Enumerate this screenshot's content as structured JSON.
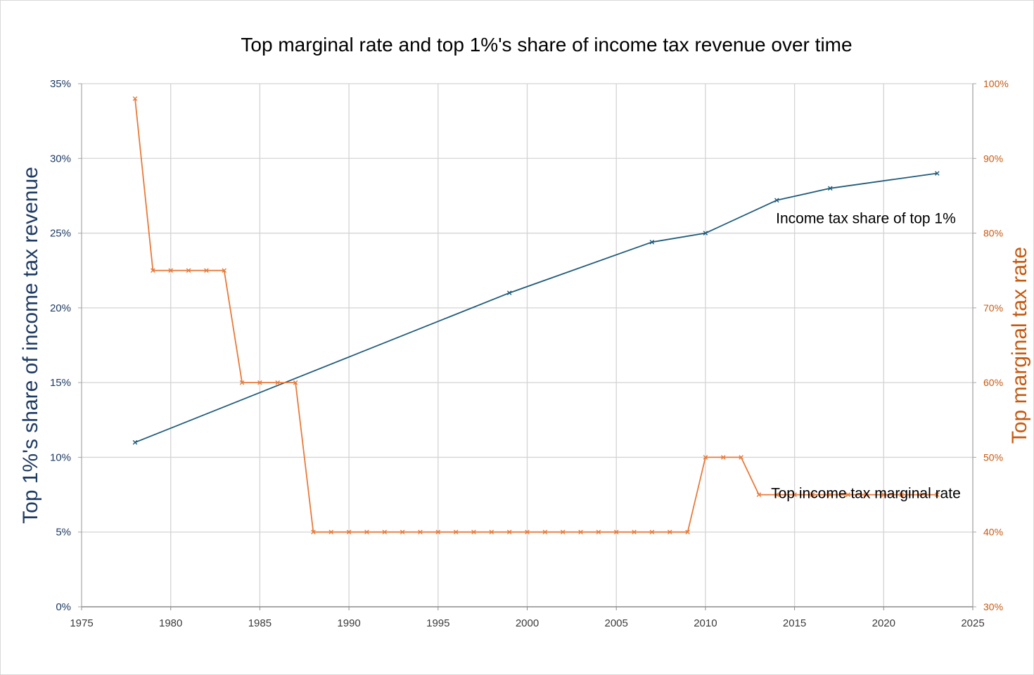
{
  "chart_data": {
    "type": "line",
    "title": "Top marginal rate and top 1%'s share of income tax revenue over time",
    "xlabel": "",
    "ylabel": "Top 1%'s share of income tax revenue",
    "y2label": "Top marginal tax rate",
    "xlim": [
      1975,
      2025
    ],
    "ylim": [
      0,
      35
    ],
    "y2lim": [
      30,
      100
    ],
    "x_ticks": [
      "1975",
      "1980",
      "1985",
      "1990",
      "1995",
      "2000",
      "2005",
      "2010",
      "2015",
      "2020",
      "2025"
    ],
    "y_ticks": [
      "0%",
      "5%",
      "10%",
      "15%",
      "20%",
      "25%",
      "30%",
      "35%"
    ],
    "y2_ticks": [
      "30%",
      "40%",
      "50%",
      "60%",
      "70%",
      "80%",
      "90%",
      "100%"
    ],
    "grid": true,
    "series": [
      {
        "name": "Income tax share of top 1%",
        "axis": "left",
        "color": "#1f5c7a",
        "x": [
          1978,
          1999,
          2007,
          2010,
          2014,
          2017,
          2023
        ],
        "y": [
          11.0,
          21.0,
          24.4,
          25.0,
          27.2,
          28.0,
          29.0
        ]
      },
      {
        "name": "Top income tax marginal rate",
        "axis": "right",
        "color": "#e87a3a",
        "x": [
          1978,
          1979,
          1980,
          1981,
          1982,
          1983,
          1984,
          1985,
          1986,
          1987,
          1988,
          1989,
          1990,
          1991,
          1992,
          1993,
          1994,
          1995,
          1996,
          1997,
          1998,
          1999,
          2000,
          2001,
          2002,
          2003,
          2004,
          2005,
          2006,
          2007,
          2008,
          2009,
          2010,
          2011,
          2012,
          2013,
          2014,
          2015,
          2016,
          2017,
          2018,
          2019,
          2020,
          2021,
          2022,
          2023
        ],
        "y": [
          98,
          75,
          75,
          75,
          75,
          75,
          60,
          60,
          60,
          60,
          40,
          40,
          40,
          40,
          40,
          40,
          40,
          40,
          40,
          40,
          40,
          40,
          40,
          40,
          40,
          40,
          40,
          40,
          40,
          40,
          40,
          40,
          50,
          50,
          50,
          45,
          45,
          45,
          45,
          45,
          45,
          45,
          45,
          45,
          45,
          45
        ]
      }
    ],
    "annotations": [
      {
        "text": "Income tax share of top 1%",
        "x": 2019,
        "y": 25.0,
        "axis": "left",
        "anchor": "middle"
      },
      {
        "text": "Top income tax marginal rate",
        "x": 2019,
        "y": 43.2,
        "axis": "right",
        "anchor": "middle"
      }
    ]
  }
}
